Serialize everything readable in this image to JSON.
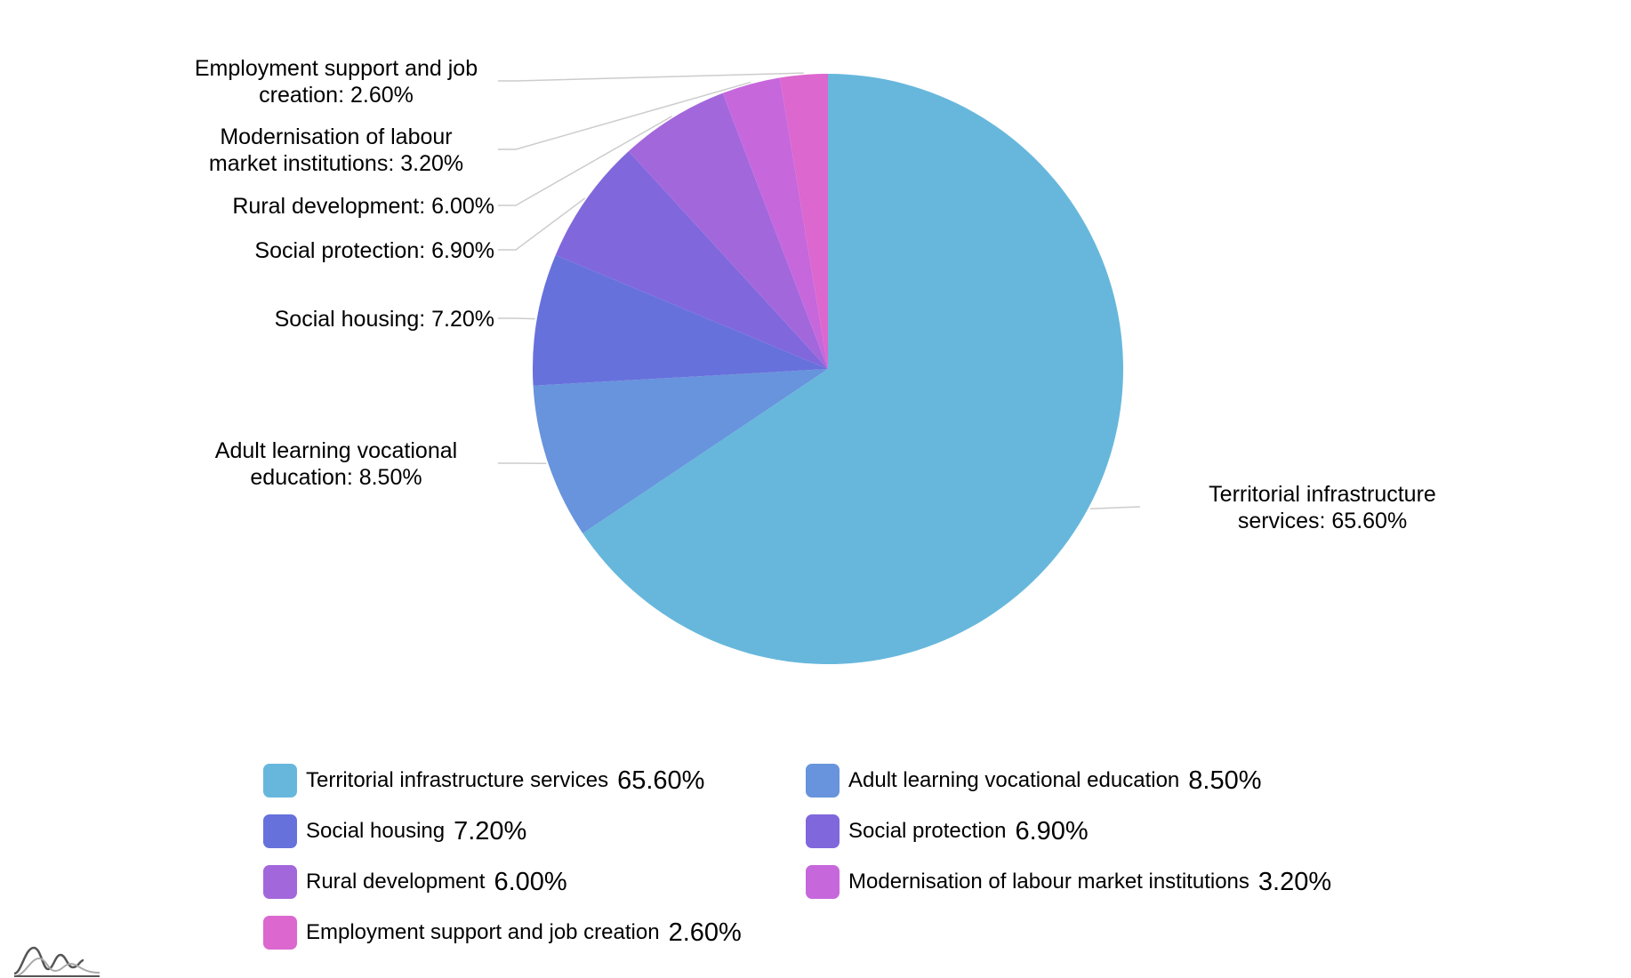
{
  "chart_data": {
    "type": "pie",
    "title": "",
    "start_angle_deg": -90,
    "direction": "clockwise",
    "label_format": "{category}: {value}%",
    "legend_position": "bottom",
    "slices": [
      {
        "category": "Territorial infrastructure services",
        "value": 65.6,
        "value_text": "65.60%",
        "color": "#67b7dc",
        "callout_lines": [
          "Territorial infrastructure",
          "services: 65.60%"
        ],
        "callout_side": "right"
      },
      {
        "category": "Adult learning vocational education",
        "value": 8.5,
        "value_text": "8.50%",
        "color": "#6794dc",
        "callout_lines": [
          "Adult learning vocational",
          "education: 8.50%"
        ],
        "callout_side": "left"
      },
      {
        "category": "Social housing",
        "value": 7.2,
        "value_text": "7.20%",
        "color": "#6771dc",
        "callout_lines": [
          "Social housing: 7.20%"
        ],
        "callout_side": "left"
      },
      {
        "category": "Social protection",
        "value": 6.9,
        "value_text": "6.90%",
        "color": "#8067dc",
        "callout_lines": [
          "Social protection: 6.90%"
        ],
        "callout_side": "left"
      },
      {
        "category": "Rural development",
        "value": 6.0,
        "value_text": "6.00%",
        "color": "#a367dc",
        "callout_lines": [
          "Rural development: 6.00%"
        ],
        "callout_side": "left"
      },
      {
        "category": "Modernisation of labour market institutions",
        "value": 3.2,
        "value_text": "3.20%",
        "color": "#c767dc",
        "callout_lines": [
          "Modernisation of labour",
          "market institutions: 3.20%"
        ],
        "callout_side": "left"
      },
      {
        "category": "Employment support and job creation",
        "value": 2.6,
        "value_text": "2.60%",
        "color": "#dc67ce",
        "callout_lines": [
          "Employment support and job",
          "creation: 2.60%"
        ],
        "callout_side": "left"
      }
    ]
  }
}
